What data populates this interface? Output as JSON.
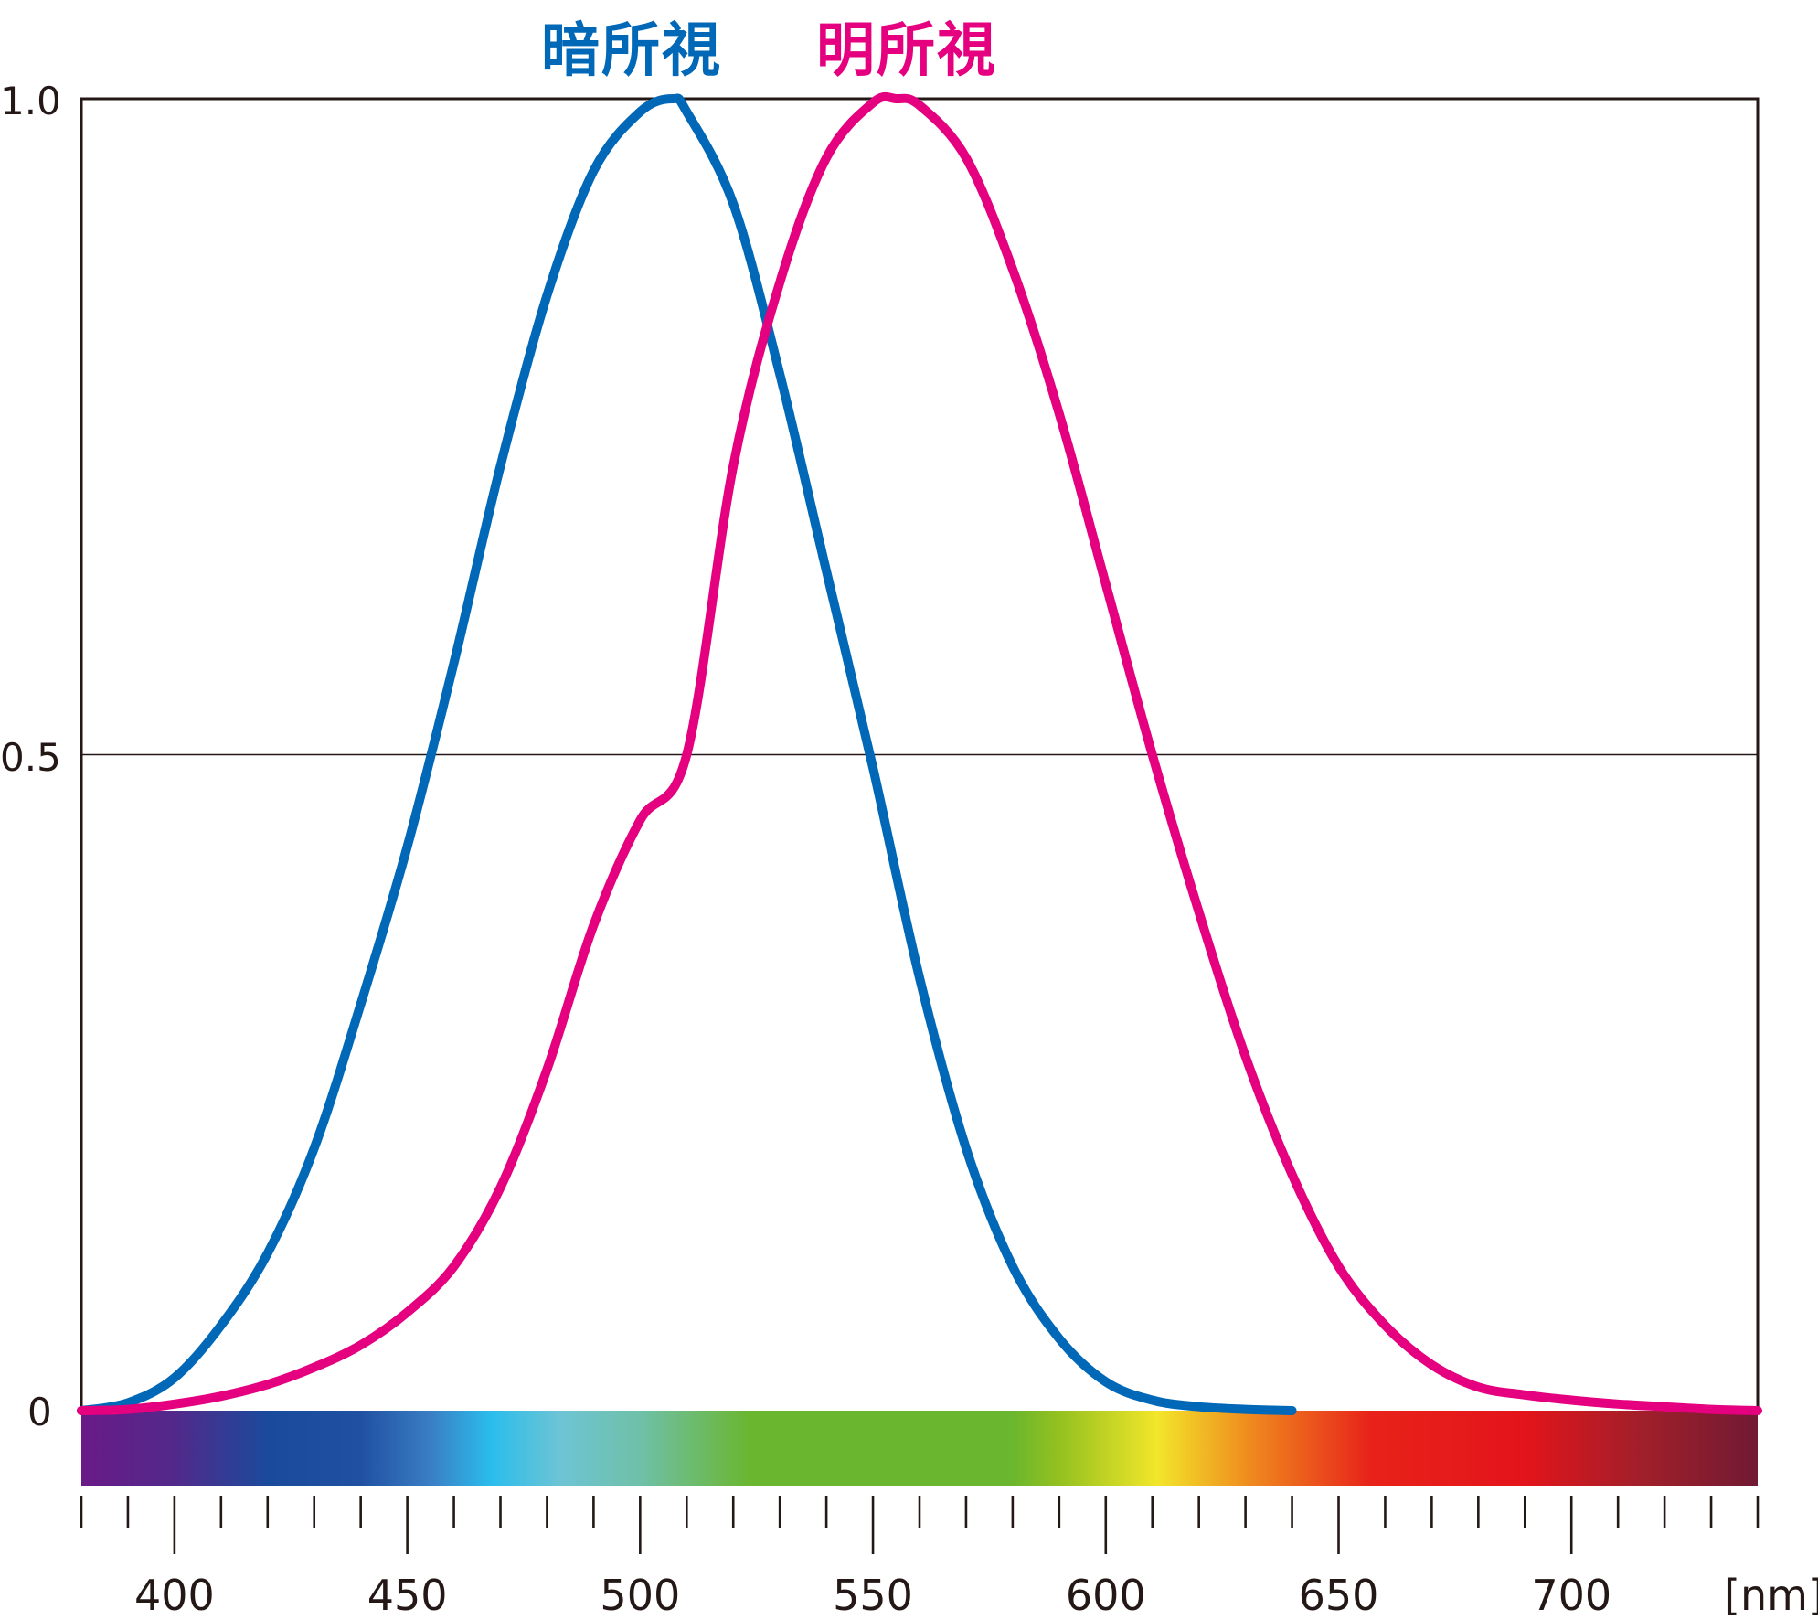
{
  "chart_data": {
    "type": "line",
    "title": "",
    "xlabel": "[nm]",
    "ylabel": "",
    "xlim": [
      380,
      740
    ],
    "ylim": [
      0,
      1.0
    ],
    "grid": {
      "horizontal_at": [
        0.5
      ]
    },
    "x_ticks": {
      "major": [
        400,
        450,
        500,
        550,
        600,
        650,
        700
      ],
      "minor_step": 10
    },
    "y_ticks": [
      "0",
      "0.5",
      "1.0"
    ],
    "legend": [
      {
        "name": "暗所視",
        "color": "#0068b7",
        "peak_nm": 507
      },
      {
        "name": "明所視",
        "color": "#e4007f",
        "peak_nm": 555
      }
    ],
    "series": [
      {
        "name": "暗所視",
        "color": "#0068b7",
        "x": [
          380,
          390,
          400,
          410,
          420,
          430,
          440,
          450,
          460,
          470,
          480,
          490,
          500,
          507,
          510,
          520,
          530,
          540,
          550,
          560,
          570,
          580,
          590,
          600,
          610,
          620,
          630,
          640
        ],
        "values": [
          0.0,
          0.006,
          0.025,
          0.065,
          0.12,
          0.2,
          0.31,
          0.43,
          0.57,
          0.72,
          0.85,
          0.945,
          0.99,
          1.0,
          0.99,
          0.92,
          0.79,
          0.64,
          0.49,
          0.33,
          0.2,
          0.11,
          0.055,
          0.022,
          0.008,
          0.003,
          0.001,
          0.0
        ]
      },
      {
        "name": "明所視",
        "color": "#e4007f",
        "x": [
          380,
          390,
          400,
          410,
          420,
          430,
          440,
          450,
          460,
          470,
          480,
          490,
          500,
          510,
          520,
          530,
          540,
          550,
          555,
          560,
          570,
          580,
          590,
          600,
          610,
          620,
          630,
          640,
          650,
          660,
          670,
          680,
          690,
          700,
          710,
          720,
          730,
          740
        ],
        "values": [
          0.0,
          0.001,
          0.005,
          0.011,
          0.02,
          0.033,
          0.05,
          0.075,
          0.11,
          0.17,
          0.26,
          0.37,
          0.45,
          0.5,
          0.72,
          0.86,
          0.955,
          0.997,
          1.0,
          0.995,
          0.955,
          0.87,
          0.76,
          0.63,
          0.5,
          0.38,
          0.27,
          0.18,
          0.11,
          0.065,
          0.035,
          0.018,
          0.012,
          0.008,
          0.005,
          0.003,
          0.001,
          0.0
        ]
      }
    ],
    "spectrum_bar": {
      "stops": [
        {
          "nm": 380,
          "color": "#6a1a88"
        },
        {
          "nm": 400,
          "color": "#52298a"
        },
        {
          "nm": 420,
          "color": "#1a4a9c"
        },
        {
          "nm": 440,
          "color": "#2050a2"
        },
        {
          "nm": 455,
          "color": "#3a7ec4"
        },
        {
          "nm": 468,
          "color": "#2abdec"
        },
        {
          "nm": 483,
          "color": "#6ec4d4"
        },
        {
          "nm": 500,
          "color": "#6fc0a8"
        },
        {
          "nm": 524,
          "color": "#6ab62e"
        },
        {
          "nm": 580,
          "color": "#6ab62e"
        },
        {
          "nm": 590,
          "color": "#94c11f"
        },
        {
          "nm": 611,
          "color": "#f2e62a"
        },
        {
          "nm": 631,
          "color": "#ef8a1e"
        },
        {
          "nm": 657,
          "color": "#e8221a"
        },
        {
          "nm": 690,
          "color": "#e3141b"
        },
        {
          "nm": 715,
          "color": "#a11f2a"
        },
        {
          "nm": 740,
          "color": "#701a33"
        }
      ]
    }
  },
  "legend": {
    "scotopic": "暗所視",
    "photopic": "明所視"
  },
  "axis": {
    "y_labels": {
      "top": "1.0",
      "mid": "0.5",
      "zero": "0"
    },
    "x_labels": [
      "400",
      "450",
      "500",
      "550",
      "600",
      "650",
      "700"
    ],
    "unit": "[nm]"
  }
}
